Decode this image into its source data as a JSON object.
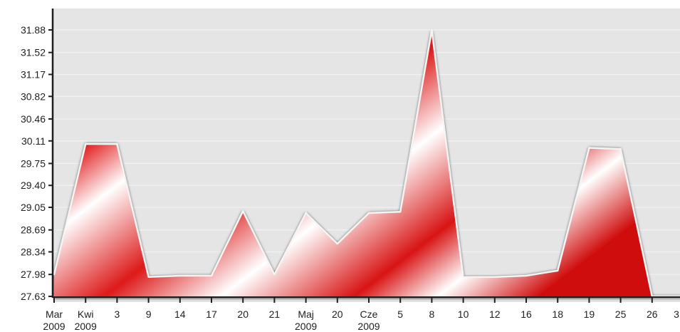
{
  "chart_data": {
    "type": "area",
    "title": "",
    "xlabel": "",
    "ylabel": "",
    "ylim": [
      27.63,
      32.0
    ],
    "y_ticks": [
      27.63,
      27.98,
      28.34,
      28.69,
      29.05,
      29.4,
      29.75,
      30.11,
      30.46,
      30.82,
      31.17,
      31.52,
      31.88
    ],
    "y_tick_labels": [
      "27.63",
      "27.98",
      "28.34",
      "28.69",
      "29.05",
      "29.40",
      "29.75",
      "30.11",
      "30.46",
      "30.82",
      "31.17",
      "31.52",
      "31.88"
    ],
    "x_tick_labels": [
      {
        "line1": "Mar",
        "line2": "2009"
      },
      {
        "line1": "Kwi",
        "line2": "2009"
      },
      {
        "line1": "3",
        "line2": ""
      },
      {
        "line1": "9",
        "line2": ""
      },
      {
        "line1": "14",
        "line2": ""
      },
      {
        "line1": "17",
        "line2": ""
      },
      {
        "line1": "20",
        "line2": ""
      },
      {
        "line1": "21",
        "line2": ""
      },
      {
        "line1": "Maj",
        "line2": "2009"
      },
      {
        "line1": "20",
        "line2": ""
      },
      {
        "line1": "Cze",
        "line2": "2009"
      },
      {
        "line1": "5",
        "line2": ""
      },
      {
        "line1": "8",
        "line2": ""
      },
      {
        "line1": "10",
        "line2": ""
      },
      {
        "line1": "12",
        "line2": ""
      },
      {
        "line1": "16",
        "line2": ""
      },
      {
        "line1": "18",
        "line2": ""
      },
      {
        "line1": "19",
        "line2": ""
      },
      {
        "line1": "25",
        "line2": ""
      },
      {
        "line1": "26",
        "line2": ""
      },
      {
        "line1": "3",
        "line2": ""
      }
    ],
    "series": [
      {
        "values": [
          27.98,
          30.06,
          30.06,
          27.94,
          27.96,
          27.96,
          28.99,
          27.98,
          28.96,
          28.47,
          28.96,
          28.98,
          31.88,
          27.94,
          27.94,
          27.96,
          28.04,
          30.0,
          29.98,
          27.63,
          27.63
        ],
        "x_index": [
          0,
          0.5,
          1,
          1.5,
          2,
          2.5,
          3,
          3.5,
          4,
          4.5,
          5,
          5.5,
          6,
          6.5,
          7,
          7.5,
          8,
          8.5,
          9,
          9.5,
          10
        ]
      }
    ],
    "grid": true,
    "legend": "none",
    "colors": {
      "fill_main": "#dc1414",
      "fill_highlight": "#ffffff",
      "outline": "#f4f4f4",
      "plot_background": "#e5e5e5",
      "axis": "#1e1e1e",
      "baseline": "#c00000"
    }
  }
}
